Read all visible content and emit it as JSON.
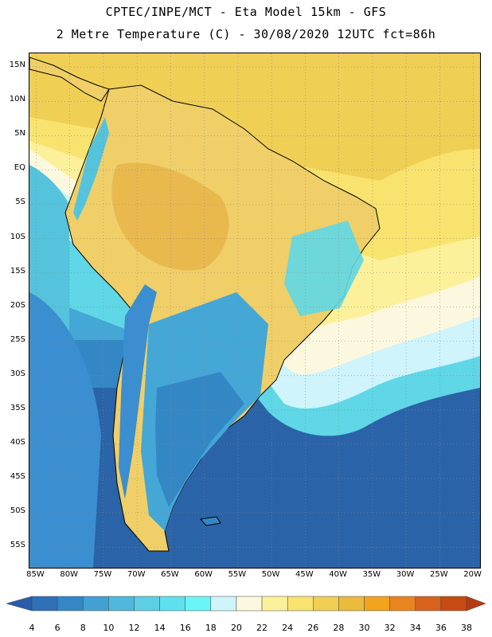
{
  "header": {
    "line1": "CPTEC/INPE/MCT -  Eta Model 15km - GFS",
    "line2": "2 Metre Temperature (C) - 30/08/2020 12UTC fct=86h"
  },
  "map": {
    "lon_range": [
      -86,
      -19
    ],
    "lat_range": [
      -58,
      17
    ],
    "lat_labels": [
      "15N",
      "10N",
      "5N",
      "EQ",
      "5S",
      "10S",
      "15S",
      "20S",
      "25S",
      "30S",
      "35S",
      "40S",
      "45S",
      "50S",
      "55S"
    ],
    "lon_labels": [
      "85W",
      "80W",
      "75W",
      "70W",
      "65W",
      "60W",
      "55W",
      "50W",
      "45W",
      "40W",
      "35W",
      "30W",
      "25W",
      "20W"
    ],
    "colors": {
      "ocean_cold": "#2a63a8",
      "ocean_mid": "#3b8ecf",
      "ocean_warm": "#55c3dc",
      "land_warm": "#f0cf68",
      "land_hot": "#e7b54a",
      "coast": "#000000"
    }
  },
  "colorbar": {
    "labels": [
      "4",
      "6",
      "8",
      "10",
      "12",
      "14",
      "16",
      "18",
      "20",
      "22",
      "24",
      "26",
      "28",
      "30",
      "32",
      "34",
      "36",
      "38"
    ],
    "colors": [
      "#2b5ca8",
      "#2f70b7",
      "#3687c6",
      "#43a0d3",
      "#50b8dc",
      "#5ccfe4",
      "#5fe0ee",
      "#6af5f7",
      "#cff4fb",
      "#fcf8df",
      "#fcf19a",
      "#f8e36f",
      "#f0cf55",
      "#eabc3e",
      "#f2a51c",
      "#e88620",
      "#d7621b",
      "#c94a14",
      "#b43c10"
    ]
  }
}
